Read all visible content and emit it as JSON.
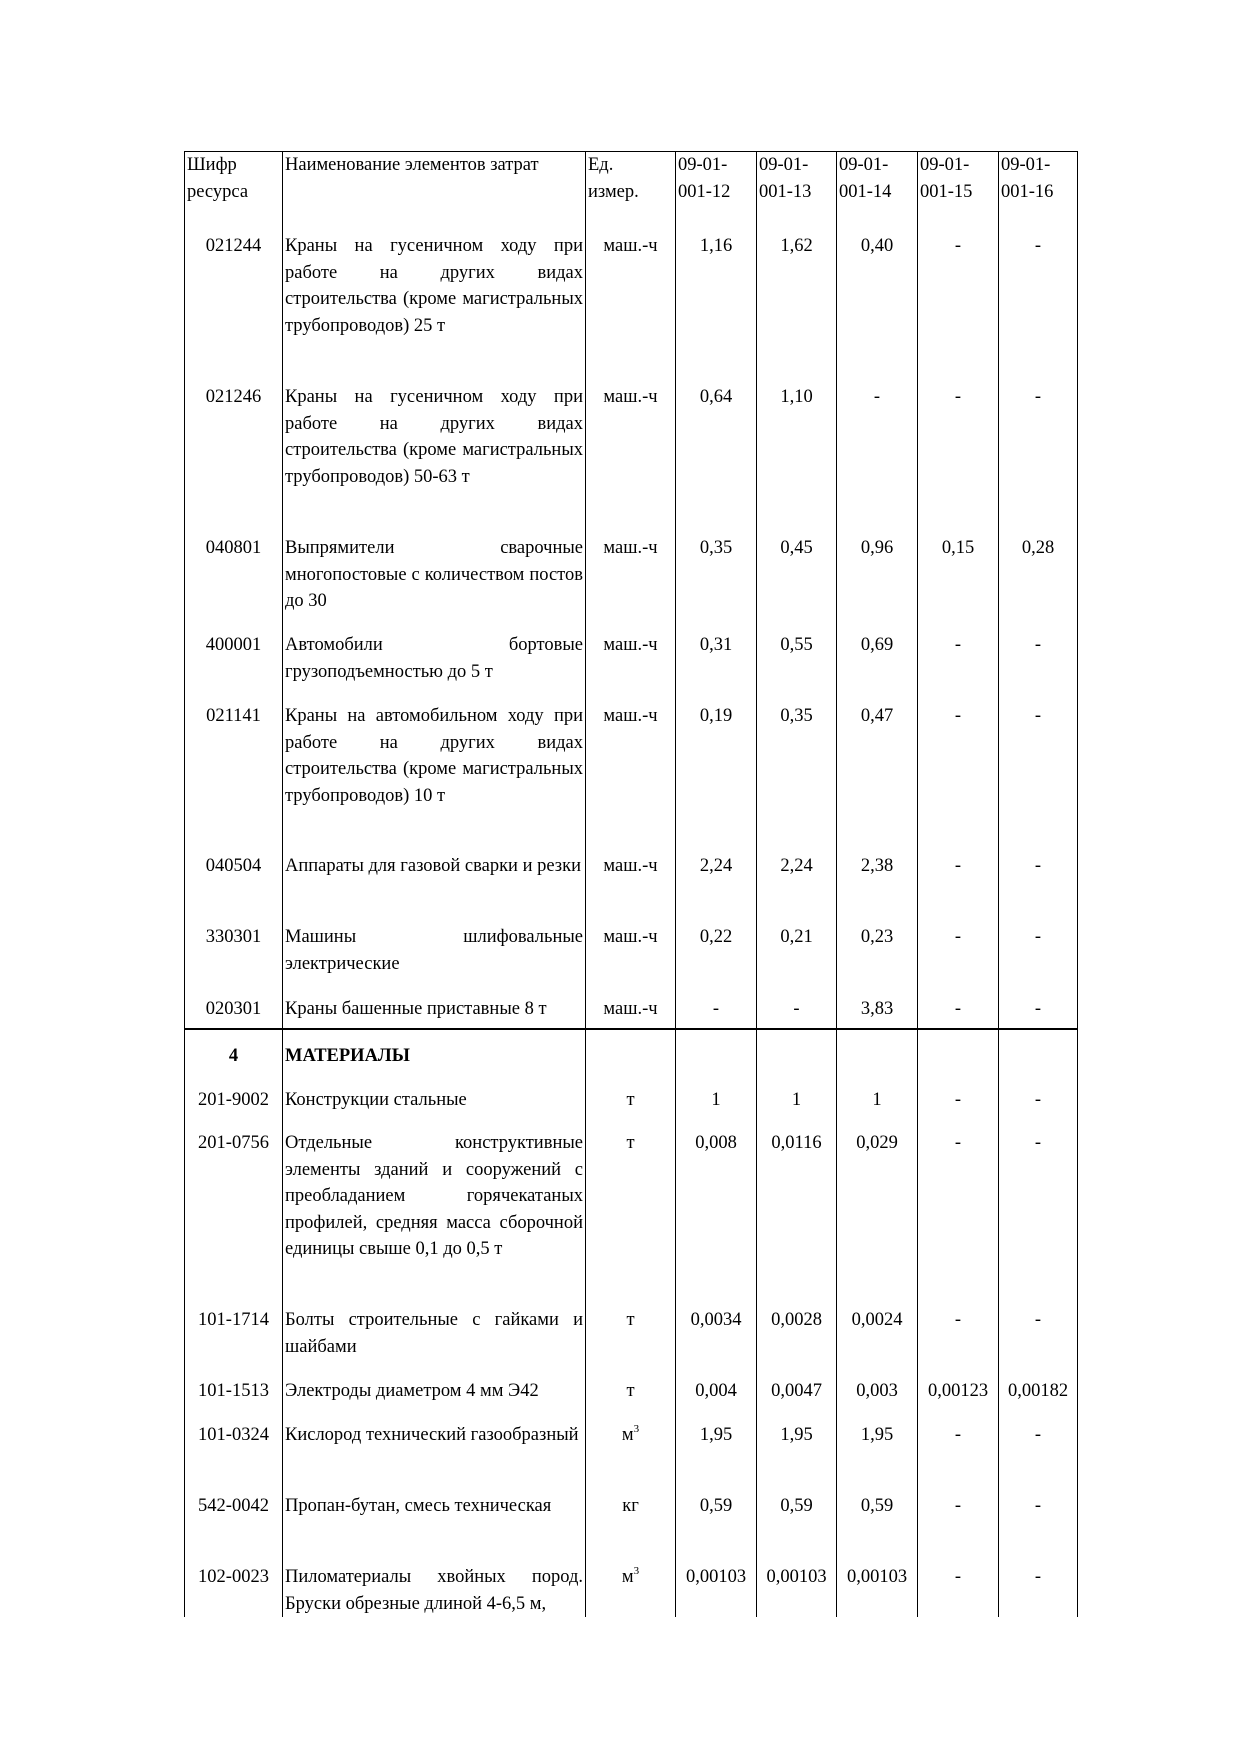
{
  "header": [
    "Шифр ресурса",
    "Наименование элементов затрат",
    "Ед. измер.",
    "09-01-001-12",
    "09-01-001-13",
    "09-01-001-14",
    "09-01-001-15",
    "09-01-001-16"
  ],
  "header_lines": [
    [
      "Шифр",
      "ресурса"
    ],
    [
      "Наименование элементов затрат",
      ""
    ],
    [
      "Ед.",
      "измер."
    ],
    [
      "09-01-",
      "001-12"
    ],
    [
      "09-01-",
      "001-13"
    ],
    [
      "09-01-",
      "001-14"
    ],
    [
      "09-01-",
      "001-15"
    ],
    [
      "09-01-",
      "001-16"
    ]
  ],
  "rows": [
    {
      "code": "021244",
      "name": "Краны на гусеничном ходу при работе на других видах строительства (кроме магистральных трубопроводов) 25 т",
      "unit": "маш.-ч",
      "v": [
        "1,16",
        "1,62",
        "0,40",
        "-",
        "-"
      ]
    },
    {
      "code": "021246",
      "name": "Краны на гусеничном ходу при работе на других видах строительства (кроме магистральных трубопроводов) 50-63 т",
      "unit": "маш.-ч",
      "v": [
        "0,64",
        "1,10",
        "-",
        "-",
        "-"
      ]
    },
    {
      "code": "040801",
      "name": "Выпрямители сварочные многопостовые с количеством постов до 30",
      "unit": "маш.-ч",
      "v": [
        "0,35",
        "0,45",
        "0,96",
        "0,15",
        "0,28"
      ]
    },
    {
      "code": "400001",
      "name": "Автомобили бортовые грузоподъемностью до 5 т",
      "unit": "маш.-ч",
      "v": [
        "0,31",
        "0,55",
        "0,69",
        "-",
        "-"
      ]
    },
    {
      "code": "021141",
      "name": "Краны на автомобильном ходу при работе на других видах строительства (кроме магистральных трубопроводов) 10 т",
      "unit": "маш.-ч",
      "v": [
        "0,19",
        "0,35",
        "0,47",
        "-",
        "-"
      ]
    },
    {
      "code": "040504",
      "name": "Аппараты для газовой сварки и резки",
      "unit": "маш.-ч",
      "v": [
        "2,24",
        "2,24",
        "2,38",
        "-",
        "-"
      ]
    },
    {
      "code": "330301",
      "name": "Машины шлифовальные электрические",
      "unit": "маш.-ч",
      "v": [
        "0,22",
        "0,21",
        "0,23",
        "-",
        "-"
      ]
    },
    {
      "code": "020301",
      "name": "Краны башенные приставные 8 т",
      "unit": "маш.-ч",
      "v": [
        "-",
        "-",
        "3,83",
        "-",
        "-"
      ]
    }
  ],
  "section": {
    "number": "4",
    "title": "МАТЕРИАЛЫ"
  },
  "materials": [
    {
      "code": "201-9002",
      "name": "Конструкции стальные",
      "unit": "т",
      "v": [
        "1",
        "1",
        "1",
        "-",
        "-"
      ]
    },
    {
      "code": "201-0756",
      "name": "Отдельные конструктивные элементы зданий и сооружений с преобладанием горячекатаных профилей, средняя масса сборочной единицы свыше 0,1 до 0,5 т",
      "unit": "т",
      "v": [
        "0,008",
        "0,0116",
        "0,029",
        "-",
        "-"
      ]
    },
    {
      "code": "101-1714",
      "name": "Болты строительные с гайками и шайбами",
      "unit": "т",
      "v": [
        "0,0034",
        "0,0028",
        "0,0024",
        "-",
        "-"
      ]
    },
    {
      "code": "101-1513",
      "name": "Электроды диаметром 4 мм Э42",
      "unit": "т",
      "v": [
        "0,004",
        "0,0047",
        "0,003",
        "0,00123",
        "0,00182"
      ]
    },
    {
      "code": "101-0324",
      "name": "Кислород технический газообразный",
      "unit": "м",
      "unit_sup": "3",
      "v": [
        "1,95",
        "1,95",
        "1,95",
        "-",
        "-"
      ]
    },
    {
      "code": "542-0042",
      "name": "Пропан-бутан, смесь техническая",
      "unit": "кг",
      "v": [
        "0,59",
        "0,59",
        "0,59",
        "-",
        "-"
      ]
    },
    {
      "code": "102-0023",
      "name": "Пиломатериалы хвойных пород. Бруски обрезные длиной 4-6,5 м,",
      "unit": "м",
      "unit_sup": "3",
      "v": [
        "0,00103",
        "0,00103",
        "0,00103",
        "-",
        "-"
      ]
    }
  ]
}
